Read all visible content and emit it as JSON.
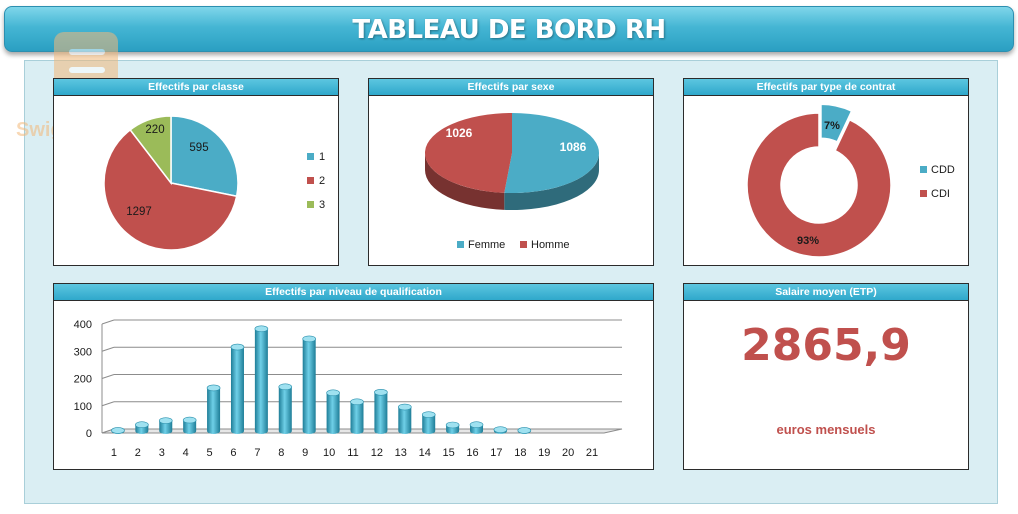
{
  "header": {
    "title": "TABLEAU DE BORD RH"
  },
  "watermark": {
    "text": "Swiga | سويقة"
  },
  "panels": {
    "classe": {
      "title": "Effectifs par classe"
    },
    "sexe": {
      "title": "Effectifs par sexe"
    },
    "contrat": {
      "title": "Effectifs par type de contrat"
    },
    "qualif": {
      "title": "Effectifs par niveau de qualification"
    },
    "salaire": {
      "title": "Salaire moyen (ETP)",
      "value": "2865,9",
      "unit": "euros mensuels"
    }
  },
  "colors": {
    "blue": "#4bacc6",
    "red": "#c0504d",
    "green": "#9bbb59",
    "title_blue": "#3fb0d0"
  },
  "chart_data": [
    {
      "type": "pie",
      "title": "Effectifs par classe",
      "categories": [
        "1",
        "2",
        "3"
      ],
      "values": [
        595,
        1297,
        220
      ],
      "labels": [
        "595",
        "1297",
        "220"
      ],
      "colors": [
        "#4bacc6",
        "#c0504d",
        "#9bbb59"
      ],
      "legend": "right"
    },
    {
      "type": "pie",
      "title": "Effectifs par sexe",
      "categories": [
        "Femme",
        "Homme"
      ],
      "values": [
        1086,
        1026
      ],
      "labels": [
        "1086",
        "1026"
      ],
      "colors": [
        "#4bacc6",
        "#c0504d"
      ],
      "legend": "bottom",
      "style": "3d"
    },
    {
      "type": "pie",
      "title": "Effectifs par type de contrat",
      "categories": [
        "CDD",
        "CDI"
      ],
      "values": [
        7,
        93
      ],
      "labels": [
        "7%",
        "93%"
      ],
      "colors": [
        "#4bacc6",
        "#c0504d"
      ],
      "legend": "right",
      "style": "doughnut"
    },
    {
      "type": "bar",
      "title": "Effectifs par niveau de qualification",
      "categories": [
        "1",
        "2",
        "3",
        "4",
        "5",
        "6",
        "7",
        "8",
        "9",
        "10",
        "11",
        "12",
        "13",
        "14",
        "15",
        "16",
        "17",
        "18",
        "19",
        "20",
        "21"
      ],
      "values": [
        2,
        23,
        38,
        40,
        158,
        308,
        375,
        162,
        338,
        140,
        107,
        142,
        88,
        60,
        22,
        23,
        5,
        2,
        0,
        0,
        0
      ],
      "ylim": [
        0,
        400
      ],
      "yticks": [
        "0",
        "100",
        "200",
        "300",
        "400"
      ],
      "grid": true,
      "style": "3d-cylinder",
      "color": "#4bacc6"
    }
  ]
}
